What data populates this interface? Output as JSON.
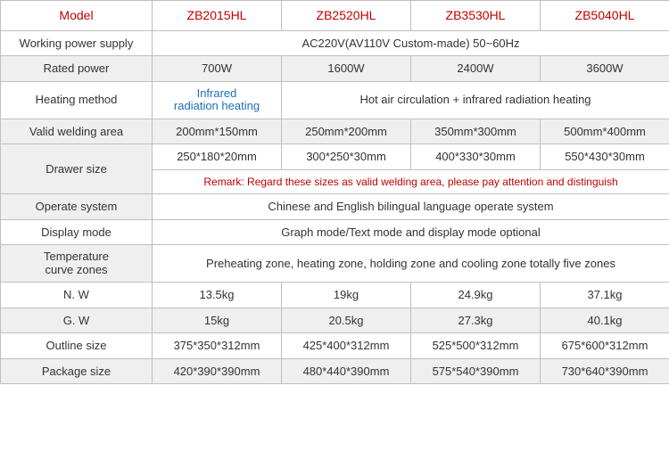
{
  "header": {
    "label": "Model",
    "cols": [
      "ZB2015HL",
      "ZB2520HL",
      "ZB3530HL",
      "ZB5040HL"
    ]
  },
  "rows": {
    "power_supply": {
      "label": "Working power supply",
      "value": "AC220V(AV110V  Custom-made)   50~60Hz"
    },
    "rated_power": {
      "label": "Rated power",
      "values": [
        "700W",
        "1600W",
        "2400W",
        "3600W"
      ]
    },
    "heating_method": {
      "label": "Heating method",
      "first_line1": "Infrared",
      "first_line2": "radiation heating",
      "rest": "Hot air circulation + infrared radiation heating"
    },
    "valid_area": {
      "label": "Valid welding area",
      "values": [
        "200mm*150mm",
        "250mm*200mm",
        "350mm*300mm",
        "500mm*400mm"
      ]
    },
    "drawer": {
      "label": "Drawer size",
      "values": [
        "250*180*20mm",
        "300*250*30mm",
        "400*330*30mm",
        "550*430*30mm"
      ],
      "remark": "Remark: Regard these sizes as valid welding area, please pay attention and distinguish"
    },
    "operate_system": {
      "label": "Operate system",
      "value": "Chinese and English bilingual language operate system"
    },
    "display_mode": {
      "label": "Display mode",
      "value": "Graph mode/Text mode and display mode optional"
    },
    "temp_curve": {
      "label_line1": "Temperature",
      "label_line2": "curve zones",
      "value": "Preheating zone, heating zone, holding zone and cooling zone totally five zones"
    },
    "nw": {
      "label": "N. W",
      "values": [
        "13.5kg",
        "19kg",
        "24.9kg",
        "37.1kg"
      ]
    },
    "gw": {
      "label": "G. W",
      "values": [
        "15kg",
        "20.5kg",
        "27.3kg",
        "40.1kg"
      ]
    },
    "outline": {
      "label": "Outline size",
      "values": [
        "375*350*312mm",
        "425*400*312mm",
        "525*500*312mm",
        "675*600*312mm"
      ]
    },
    "package": {
      "label": "Package size",
      "values": [
        "420*390*390mm",
        "480*440*390mm",
        "575*540*390mm",
        "730*640*390mm"
      ]
    }
  }
}
